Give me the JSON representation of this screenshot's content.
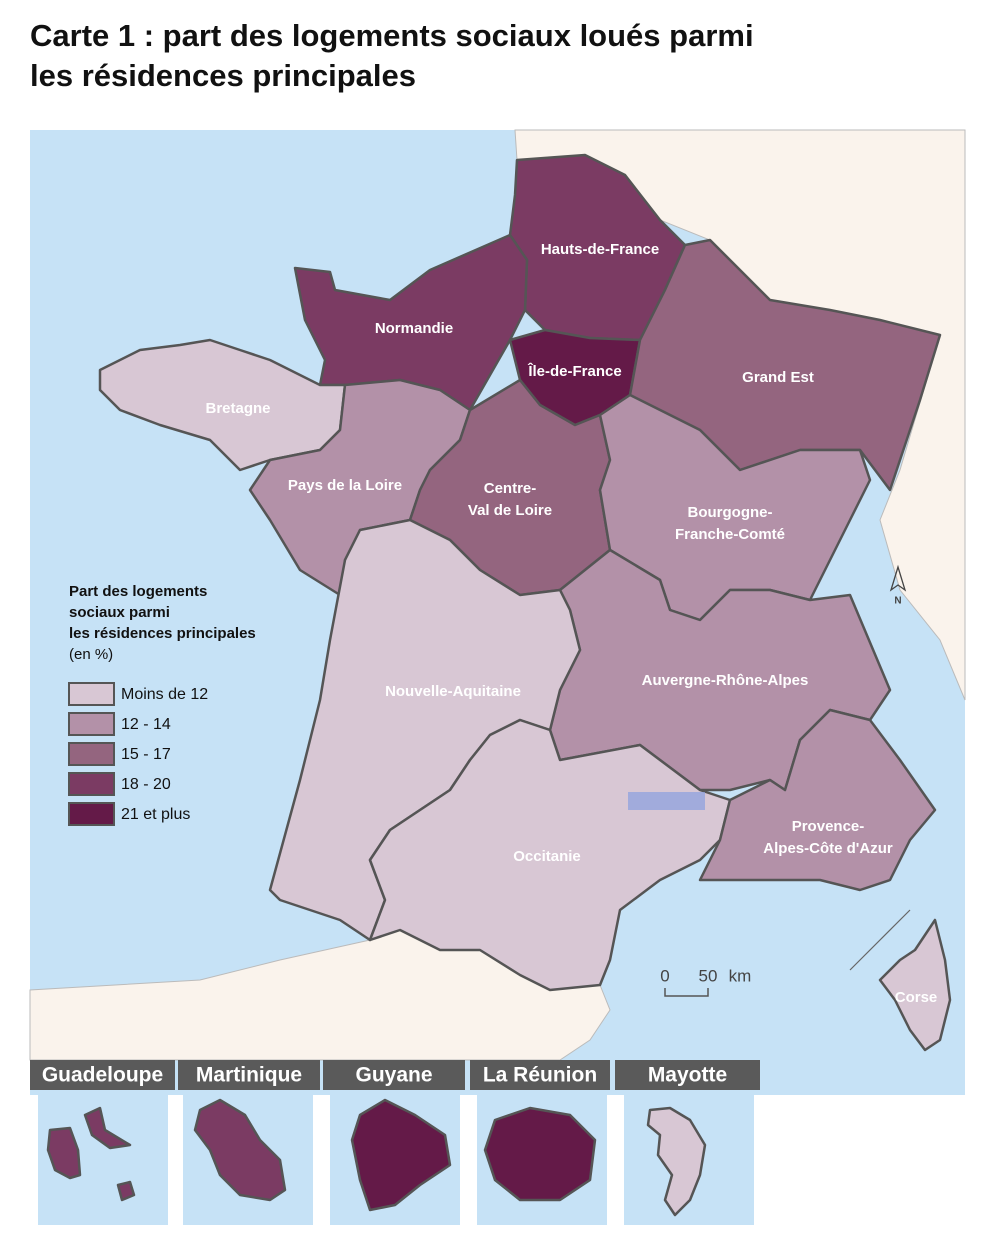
{
  "title_lines": [
    "Carte 1 : part des logements sociaux loués parmi",
    "les résidences principales"
  ],
  "legend": {
    "title_lines": [
      "Part des logements",
      "sociaux parmi",
      "les résidences principales"
    ],
    "unit": "(en %)",
    "classes": [
      {
        "label": "Moins de 12",
        "color": "#d8c7d4"
      },
      {
        "label": "12 - 14",
        "color": "#b391a8"
      },
      {
        "label": "15 - 17",
        "color": "#94657f"
      },
      {
        "label": "18 - 20",
        "color": "#7b3b63"
      },
      {
        "label": "21 et plus",
        "color": "#641a48"
      }
    ]
  },
  "regions": [
    {
      "name_lines": [
        "Hauts-de-France"
      ],
      "color": "#7b3b63"
    },
    {
      "name_lines": [
        "Normandie"
      ],
      "color": "#7b3b63"
    },
    {
      "name_lines": [
        "Île-de-France"
      ],
      "color": "#641a48"
    },
    {
      "name_lines": [
        "Grand Est"
      ],
      "color": "#94657f"
    },
    {
      "name_lines": [
        "Bretagne"
      ],
      "color": "#d8c7d4"
    },
    {
      "name_lines": [
        "Pays de la Loire"
      ],
      "color": "#b391a8"
    },
    {
      "name_lines": [
        "Centre-",
        "Val de Loire"
      ],
      "color": "#94657f"
    },
    {
      "name_lines": [
        "Bourgogne-",
        "Franche-Comté"
      ],
      "color": "#b391a8"
    },
    {
      "name_lines": [
        "Auvergne-Rhône-Alpes"
      ],
      "color": "#b391a8"
    },
    {
      "name_lines": [
        "Nouvelle-Aquitaine"
      ],
      "color": "#d8c7d4"
    },
    {
      "name_lines": [
        "Occitanie"
      ],
      "color": "#d8c7d4"
    },
    {
      "name_lines": [
        "Provence-",
        "Alpes-Côte d'Azur"
      ],
      "color": "#b391a8"
    },
    {
      "name_lines": [
        "Corse"
      ],
      "color": "#d8c7d4"
    }
  ],
  "overseas": [
    {
      "name": "Guadeloupe",
      "color": "#7b3b63"
    },
    {
      "name": "Martinique",
      "color": "#7b3b63"
    },
    {
      "name": "Guyane",
      "color": "#641a48"
    },
    {
      "name": "La Réunion",
      "color": "#641a48"
    },
    {
      "name": "Mayotte",
      "color": "#d8c7d4"
    }
  ],
  "scale": {
    "start": "0",
    "end": "50",
    "unit": "km"
  },
  "north": "N"
}
